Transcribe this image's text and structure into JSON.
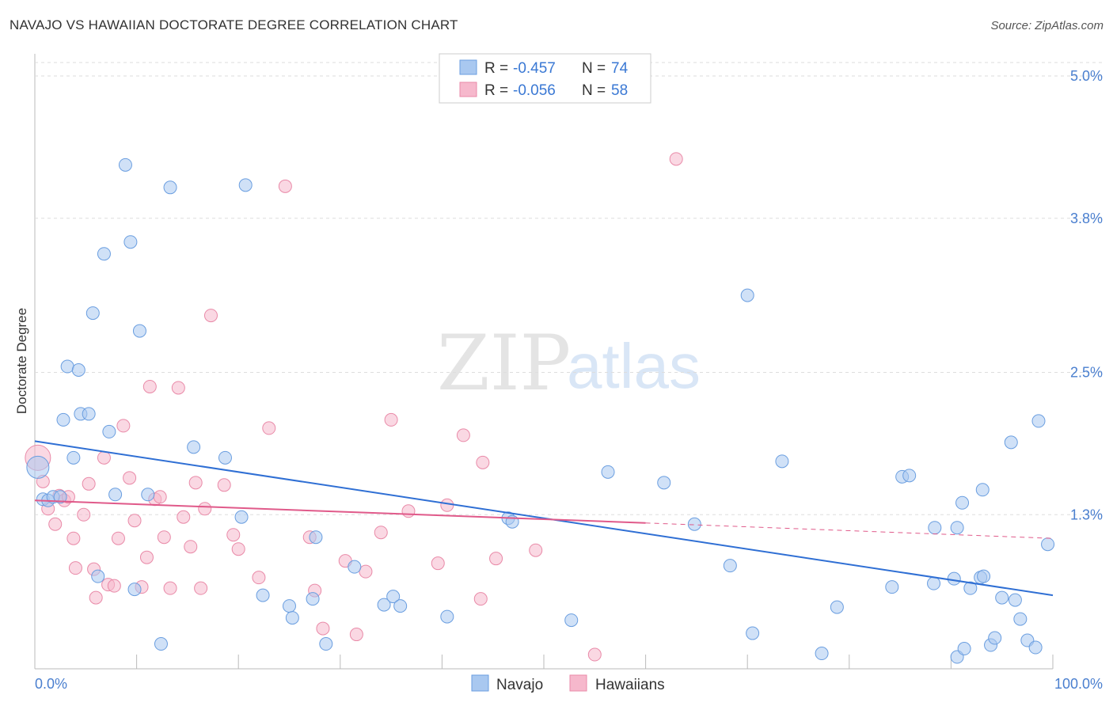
{
  "title": "NAVAJO VS HAWAIIAN DOCTORATE DEGREE CORRELATION CHART",
  "source": "Source: ZipAtlas.com",
  "watermark": {
    "zip": "ZIP",
    "atlas": "atlas"
  },
  "colors": {
    "navajo_fill": "#a9c8f0",
    "navajo_stroke": "#6a9ee0",
    "navajo_line": "#2f6fd4",
    "hawaiian_fill": "#f6b8cc",
    "hawaiian_stroke": "#e98aa8",
    "hawaiian_line": "#e05a8a",
    "grid": "#dddddd",
    "tick_text": "#4a7fcf"
  },
  "legend": {
    "rows": [
      {
        "r_label": "R =",
        "r_value": "-0.457",
        "n_label": "N =",
        "n_value": "74"
      },
      {
        "r_label": "R =",
        "r_value": "-0.056",
        "n_label": "N =",
        "n_value": "58"
      }
    ]
  },
  "chart_data": {
    "type": "scatter",
    "title": "NAVAJO VS HAWAIIAN DOCTORATE DEGREE CORRELATION CHART",
    "xlabel": "",
    "ylabel": "Doctorate Degree",
    "xlim": [
      0,
      100
    ],
    "ylim": [
      0,
      5.0
    ],
    "x_tick_labels": {
      "min": "0.0%",
      "max": "100.0%"
    },
    "y_ticks": [
      {
        "value": 1.3,
        "label": "1.3%"
      },
      {
        "value": 2.5,
        "label": "2.5%"
      },
      {
        "value": 3.8,
        "label": "3.8%"
      },
      {
        "value": 5.0,
        "label": "5.0%"
      }
    ],
    "grid": true,
    "legend_position": "top-center",
    "series": [
      {
        "name": "Navajo",
        "R": -0.457,
        "N": 74,
        "trend": {
          "x0": 0,
          "y0": 1.92,
          "x1": 100,
          "y1": 0.62
        },
        "points": [
          [
            0.3,
            1.7
          ],
          [
            0.8,
            1.43
          ],
          [
            1.3,
            1.42
          ],
          [
            1.8,
            1.45
          ],
          [
            2.5,
            1.45
          ],
          [
            2.8,
            2.1
          ],
          [
            3.2,
            2.55
          ],
          [
            3.8,
            1.78
          ],
          [
            4.3,
            2.52
          ],
          [
            4.5,
            2.15
          ],
          [
            5.3,
            2.15
          ],
          [
            5.7,
            3.0
          ],
          [
            6.2,
            0.78
          ],
          [
            6.8,
            3.5
          ],
          [
            7.3,
            2.0
          ],
          [
            7.9,
            1.47
          ],
          [
            8.9,
            4.25
          ],
          [
            9.4,
            3.6
          ],
          [
            9.8,
            0.67
          ],
          [
            10.3,
            2.85
          ],
          [
            11.1,
            1.47
          ],
          [
            12.4,
            0.21
          ],
          [
            13.3,
            4.06
          ],
          [
            15.6,
            1.87
          ],
          [
            18.7,
            1.78
          ],
          [
            20.3,
            1.28
          ],
          [
            20.7,
            4.08
          ],
          [
            22.4,
            0.62
          ],
          [
            25.0,
            0.53
          ],
          [
            25.3,
            0.43
          ],
          [
            27.3,
            0.59
          ],
          [
            27.6,
            1.11
          ],
          [
            28.6,
            0.21
          ],
          [
            31.4,
            0.86
          ],
          [
            34.3,
            0.54
          ],
          [
            35.2,
            0.61
          ],
          [
            35.9,
            0.53
          ],
          [
            40.5,
            0.44
          ],
          [
            46.5,
            1.27
          ],
          [
            46.9,
            1.24
          ],
          [
            52.7,
            0.41
          ],
          [
            56.3,
            1.66
          ],
          [
            61.8,
            1.57
          ],
          [
            64.8,
            1.22
          ],
          [
            68.3,
            0.87
          ],
          [
            70.0,
            3.15
          ],
          [
            70.5,
            0.3
          ],
          [
            73.4,
            1.75
          ],
          [
            77.3,
            0.13
          ],
          [
            78.8,
            0.52
          ],
          [
            84.2,
            0.69
          ],
          [
            85.2,
            1.62
          ],
          [
            85.9,
            1.63
          ],
          [
            88.4,
            1.19
          ],
          [
            88.3,
            0.72
          ],
          [
            90.3,
            0.76
          ],
          [
            90.6,
            0.1
          ],
          [
            90.6,
            1.19
          ],
          [
            91.1,
            1.4
          ],
          [
            91.3,
            0.17
          ],
          [
            91.9,
            0.68
          ],
          [
            92.9,
            0.77
          ],
          [
            93.1,
            1.51
          ],
          [
            93.2,
            0.78
          ],
          [
            93.9,
            0.2
          ],
          [
            94.3,
            0.26
          ],
          [
            95.0,
            0.6
          ],
          [
            95.9,
            1.91
          ],
          [
            96.3,
            0.58
          ],
          [
            96.8,
            0.42
          ],
          [
            97.5,
            0.24
          ],
          [
            98.3,
            0.18
          ],
          [
            98.6,
            2.09
          ],
          [
            99.5,
            1.05
          ]
        ]
      },
      {
        "name": "Hawaiians",
        "R": -0.056,
        "N": 58,
        "trend": {
          "x0": 0,
          "y0": 1.42,
          "x1": 60,
          "y1": 1.23
        },
        "trend_dashed": {
          "x0": 60,
          "y0": 1.23,
          "x1": 100,
          "y1": 1.1
        },
        "points": [
          [
            0.3,
            1.78
          ],
          [
            0.8,
            1.58
          ],
          [
            1.3,
            1.35
          ],
          [
            2.0,
            1.22
          ],
          [
            2.4,
            1.46
          ],
          [
            2.9,
            1.42
          ],
          [
            3.3,
            1.45
          ],
          [
            3.8,
            1.1
          ],
          [
            4.0,
            0.85
          ],
          [
            4.8,
            1.3
          ],
          [
            5.3,
            1.56
          ],
          [
            5.8,
            0.84
          ],
          [
            6.0,
            0.6
          ],
          [
            6.8,
            1.78
          ],
          [
            7.2,
            0.71
          ],
          [
            7.8,
            0.7
          ],
          [
            8.2,
            1.1
          ],
          [
            8.7,
            2.05
          ],
          [
            9.3,
            1.61
          ],
          [
            9.8,
            1.25
          ],
          [
            10.5,
            0.69
          ],
          [
            11.0,
            0.94
          ],
          [
            11.3,
            2.38
          ],
          [
            11.8,
            1.43
          ],
          [
            12.3,
            1.45
          ],
          [
            12.7,
            1.11
          ],
          [
            13.3,
            0.68
          ],
          [
            14.1,
            2.37
          ],
          [
            14.6,
            1.28
          ],
          [
            15.3,
            1.03
          ],
          [
            15.8,
            1.57
          ],
          [
            16.3,
            0.68
          ],
          [
            16.7,
            1.35
          ],
          [
            17.3,
            2.98
          ],
          [
            18.6,
            1.55
          ],
          [
            19.5,
            1.13
          ],
          [
            20.0,
            1.01
          ],
          [
            22.0,
            0.77
          ],
          [
            23.0,
            2.03
          ],
          [
            24.6,
            4.07
          ],
          [
            27.0,
            1.11
          ],
          [
            27.5,
            0.66
          ],
          [
            28.3,
            0.34
          ],
          [
            30.5,
            0.91
          ],
          [
            31.6,
            0.29
          ],
          [
            32.5,
            0.82
          ],
          [
            35.0,
            2.1
          ],
          [
            36.7,
            1.33
          ],
          [
            39.6,
            0.89
          ],
          [
            40.5,
            1.38
          ],
          [
            42.1,
            1.97
          ],
          [
            43.8,
            0.59
          ],
          [
            44.0,
            1.74
          ],
          [
            45.3,
            0.93
          ],
          [
            49.2,
            1.0
          ],
          [
            55.0,
            0.12
          ],
          [
            63.0,
            4.3
          ],
          [
            34.0,
            1.15
          ]
        ]
      }
    ]
  },
  "bottom_legend": [
    {
      "label": "Navajo"
    },
    {
      "label": "Hawaiians"
    }
  ]
}
